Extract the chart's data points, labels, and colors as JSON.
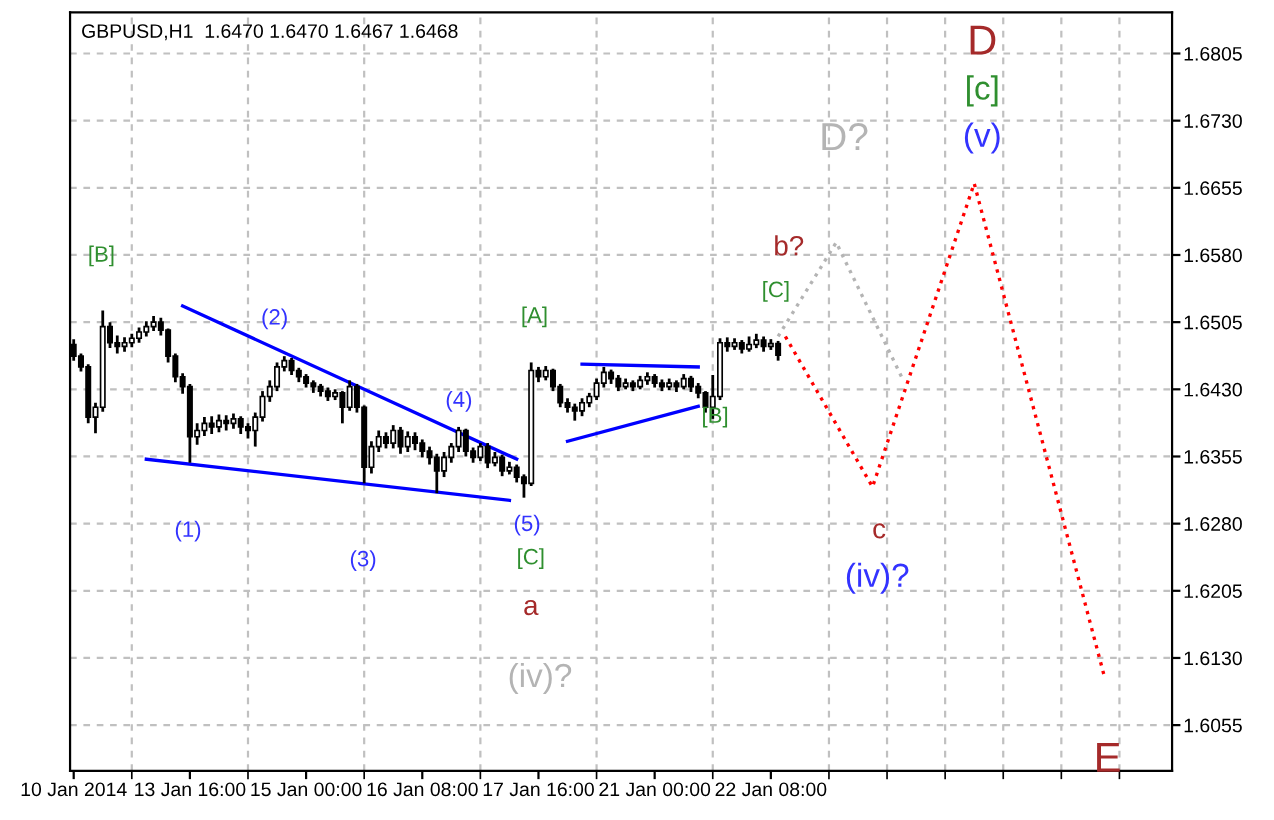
{
  "chart_data": {
    "type": "candlestick",
    "title": "GBPUSD,H1  1.6470 1.6470 1.6467 1.6468",
    "color": "#000000",
    "categories": [
      "10 Jan 2014",
      null,
      null,
      null,
      null,
      null,
      null,
      null,
      null,
      null,
      null,
      null,
      null,
      null,
      null,
      null,
      "13 Jan 16:00",
      null,
      null,
      null,
      null,
      null,
      null,
      null,
      null,
      null,
      null,
      null,
      null,
      null,
      null,
      null,
      "15 Jan 00:00",
      null,
      null,
      null,
      null,
      null,
      null,
      null,
      null,
      null,
      null,
      null,
      null,
      null,
      null,
      null,
      "16 Jan 08:00",
      null,
      null,
      null,
      null,
      null,
      null,
      null,
      null,
      null,
      null,
      null,
      null,
      null,
      null,
      null,
      "17 Jan 16:00",
      null,
      null,
      null,
      null,
      null,
      null,
      null,
      null,
      null,
      null,
      null,
      null,
      null,
      null,
      null,
      "21 Jan 00:00",
      null,
      null,
      null,
      null,
      null,
      null,
      null,
      null,
      null,
      null,
      null,
      null,
      null,
      null,
      null,
      "22 Jan 08:00",
      null,
      null,
      null,
      null,
      null,
      null,
      null,
      null,
      null,
      null,
      null,
      null,
      null,
      null,
      null,
      null,
      null,
      null,
      null,
      null,
      null,
      null,
      null,
      null,
      null,
      null,
      null,
      null,
      null,
      null,
      null,
      null,
      null,
      null,
      null,
      null,
      null,
      null,
      null,
      null,
      null,
      null,
      null,
      null,
      null,
      null,
      null,
      null,
      null,
      null,
      null,
      null,
      null,
      null,
      null
    ],
    "ohlc": [
      [
        1.648,
        1.6486,
        1.6462,
        1.6467
      ],
      [
        1.6467,
        1.647,
        1.645,
        1.6455
      ],
      [
        1.6455,
        1.6458,
        1.6392,
        1.6399
      ],
      [
        1.6399,
        1.6415,
        1.6381,
        1.641
      ],
      [
        1.641,
        1.6518,
        1.6405,
        1.65
      ],
      [
        1.65,
        1.6505,
        1.6476,
        1.6482
      ],
      [
        1.6482,
        1.649,
        1.647,
        1.6478
      ],
      [
        1.6478,
        1.6488,
        1.6472,
        1.6482
      ],
      [
        1.6482,
        1.6492,
        1.6477,
        1.6487
      ],
      [
        1.6487,
        1.6499,
        1.6482,
        1.6494
      ],
      [
        1.6494,
        1.6506,
        1.6489,
        1.65
      ],
      [
        1.65,
        1.6512,
        1.6495,
        1.6505
      ],
      [
        1.6505,
        1.651,
        1.649,
        1.6496
      ],
      [
        1.6496,
        1.6498,
        1.646,
        1.6467
      ],
      [
        1.6467,
        1.647,
        1.6438,
        1.6444
      ],
      [
        1.6444,
        1.6448,
        1.6425,
        1.6433
      ],
      [
        1.6433,
        1.6436,
        1.6348,
        1.6377
      ],
      [
        1.6377,
        1.6392,
        1.6368,
        1.6384
      ],
      [
        1.6384,
        1.6399,
        1.6378,
        1.6392
      ],
      [
        1.6392,
        1.64,
        1.638,
        1.6388
      ],
      [
        1.6388,
        1.6402,
        1.6382,
        1.6395
      ],
      [
        1.6395,
        1.6401,
        1.6384,
        1.6392
      ],
      [
        1.6392,
        1.6403,
        1.6386,
        1.6397
      ],
      [
        1.6397,
        1.64,
        1.638,
        1.6388
      ],
      [
        1.6388,
        1.6392,
        1.6375,
        1.6384
      ],
      [
        1.6384,
        1.6404,
        1.6366,
        1.6399
      ],
      [
        1.6399,
        1.6428,
        1.6394,
        1.6422
      ],
      [
        1.6422,
        1.644,
        1.6416,
        1.6433
      ],
      [
        1.6433,
        1.646,
        1.6428,
        1.6455
      ],
      [
        1.6455,
        1.6467,
        1.645,
        1.6462
      ],
      [
        1.6462,
        1.6465,
        1.6446,
        1.6451
      ],
      [
        1.6451,
        1.6454,
        1.6438,
        1.6444
      ],
      [
        1.6444,
        1.6447,
        1.6432,
        1.6437
      ],
      [
        1.6437,
        1.644,
        1.6426,
        1.6433
      ],
      [
        1.6433,
        1.6436,
        1.6422,
        1.6428
      ],
      [
        1.6428,
        1.6432,
        1.6417,
        1.6422
      ],
      [
        1.6422,
        1.643,
        1.6418,
        1.6426
      ],
      [
        1.6426,
        1.6428,
        1.6392,
        1.641
      ],
      [
        1.641,
        1.644,
        1.6406,
        1.6433
      ],
      [
        1.6433,
        1.6436,
        1.6404,
        1.641
      ],
      [
        1.641,
        1.6412,
        1.6325,
        1.6343
      ],
      [
        1.6343,
        1.6372,
        1.6336,
        1.6366
      ],
      [
        1.6366,
        1.6384,
        1.636,
        1.6377
      ],
      [
        1.6377,
        1.6382,
        1.6364,
        1.637
      ],
      [
        1.637,
        1.639,
        1.6364,
        1.6384
      ],
      [
        1.6384,
        1.6388,
        1.6358,
        1.6366
      ],
      [
        1.6366,
        1.6383,
        1.636,
        1.6377
      ],
      [
        1.6377,
        1.6382,
        1.6362,
        1.637
      ],
      [
        1.637,
        1.6374,
        1.6354,
        1.6361
      ],
      [
        1.6361,
        1.6366,
        1.6346,
        1.6354
      ],
      [
        1.6354,
        1.6358,
        1.6314,
        1.6339
      ],
      [
        1.6339,
        1.636,
        1.6332,
        1.6354
      ],
      [
        1.6354,
        1.637,
        1.6348,
        1.6366
      ],
      [
        1.6366,
        1.6388,
        1.636,
        1.6384
      ],
      [
        1.6384,
        1.6386,
        1.6355,
        1.6361
      ],
      [
        1.6361,
        1.6365,
        1.6348,
        1.6354
      ],
      [
        1.6354,
        1.637,
        1.635,
        1.6366
      ],
      [
        1.6366,
        1.637,
        1.6342,
        1.6348
      ],
      [
        1.6348,
        1.636,
        1.6344,
        1.6354
      ],
      [
        1.6354,
        1.6357,
        1.6333,
        1.6339
      ],
      [
        1.6339,
        1.6349,
        1.6335,
        1.6343
      ],
      [
        1.6343,
        1.6346,
        1.6326,
        1.6332
      ],
      [
        1.6332,
        1.6335,
        1.6309,
        1.6325
      ],
      [
        1.6325,
        1.646,
        1.6322,
        1.6451
      ],
      [
        1.6451,
        1.6455,
        1.6438,
        1.6444
      ],
      [
        1.6444,
        1.6456,
        1.644,
        1.6451
      ],
      [
        1.6451,
        1.6453,
        1.6428,
        1.6433
      ],
      [
        1.6433,
        1.6436,
        1.641,
        1.6415
      ],
      [
        1.6415,
        1.642,
        1.6404,
        1.641
      ],
      [
        1.641,
        1.6414,
        1.6395,
        1.6406
      ],
      [
        1.6406,
        1.642,
        1.64,
        1.6415
      ],
      [
        1.6415,
        1.6426,
        1.641,
        1.6422
      ],
      [
        1.6422,
        1.6442,
        1.6418,
        1.6437
      ],
      [
        1.6437,
        1.6455,
        1.6432,
        1.6449
      ],
      [
        1.6449,
        1.6452,
        1.6436,
        1.6442
      ],
      [
        1.6442,
        1.6446,
        1.6428,
        1.6433
      ],
      [
        1.6433,
        1.6442,
        1.643,
        1.6437
      ],
      [
        1.6437,
        1.644,
        1.6428,
        1.6433
      ],
      [
        1.6433,
        1.6445,
        1.643,
        1.644
      ],
      [
        1.644,
        1.6449,
        1.6435,
        1.6444
      ],
      [
        1.6444,
        1.6447,
        1.6432,
        1.6437
      ],
      [
        1.6437,
        1.6441,
        1.6428,
        1.6433
      ],
      [
        1.6433,
        1.6442,
        1.6429,
        1.6437
      ],
      [
        1.6437,
        1.644,
        1.6427,
        1.6433
      ],
      [
        1.6433,
        1.6447,
        1.643,
        1.6442
      ],
      [
        1.6442,
        1.6445,
        1.6427,
        1.6433
      ],
      [
        1.6433,
        1.6437,
        1.642,
        1.6426
      ],
      [
        1.6426,
        1.6428,
        1.6404,
        1.641
      ],
      [
        1.641,
        1.6446,
        1.6397,
        1.6422
      ],
      [
        1.6422,
        1.6487,
        1.6418,
        1.6482
      ],
      [
        1.6482,
        1.6488,
        1.6472,
        1.6478
      ],
      [
        1.6478,
        1.6487,
        1.6474,
        1.6482
      ],
      [
        1.6482,
        1.6485,
        1.647,
        1.6475
      ],
      [
        1.6475,
        1.6489,
        1.6472,
        1.648
      ],
      [
        1.648,
        1.6492,
        1.6476,
        1.6485
      ],
      [
        1.6485,
        1.6489,
        1.6472,
        1.6478
      ],
      [
        1.6478,
        1.6486,
        1.6474,
        1.6481
      ],
      [
        1.6481,
        1.6484,
        1.6462,
        1.6468
      ],
      null,
      null,
      null,
      null,
      null,
      null,
      null,
      null,
      null,
      null,
      null,
      null,
      null,
      null,
      null,
      null,
      null,
      null,
      null,
      null,
      null,
      null,
      null,
      null,
      null,
      null,
      null,
      null,
      null,
      null,
      null,
      null,
      null,
      null,
      null,
      null,
      null,
      null,
      null,
      null,
      null,
      null,
      null,
      null,
      null,
      null,
      null,
      null,
      null,
      null,
      null,
      null,
      null,
      null
    ],
    "series": [
      {
        "type": "line",
        "color": "#0000ff",
        "line_style": "solid",
        "values": [
          null,
          null,
          null,
          null,
          null,
          null,
          null,
          null,
          null,
          null,
          null,
          null,
          null,
          null,
          null,
          1.6523,
          null,
          null,
          null,
          null,
          null,
          null,
          null,
          null,
          null,
          null,
          null,
          null,
          null,
          null,
          null,
          null,
          null,
          null,
          null,
          null,
          null,
          null,
          null,
          null,
          null,
          null,
          null,
          null,
          null,
          null,
          null,
          null,
          null,
          null,
          null,
          null,
          null,
          null,
          null,
          null,
          null,
          null,
          null,
          null,
          null,
          1.6352,
          null,
          null,
          null,
          null,
          null,
          null,
          null,
          null,
          null,
          null,
          null,
          null,
          null,
          null,
          null,
          null,
          null,
          null,
          null,
          null,
          null,
          null,
          null,
          null,
          null,
          null,
          null,
          null,
          null,
          null,
          null,
          null,
          null,
          null,
          null,
          null,
          null,
          null,
          null,
          null,
          null,
          null,
          null,
          null,
          null,
          null,
          null,
          null,
          null,
          null,
          null,
          null,
          null,
          null,
          null,
          null,
          null,
          null,
          null,
          null,
          null,
          null,
          null,
          null,
          null,
          null,
          null,
          null,
          null,
          null,
          null,
          null,
          null,
          null,
          null,
          null,
          null,
          null,
          null,
          null,
          null,
          null,
          null,
          null,
          null,
          null,
          null,
          null,
          null,
          null
        ]
      },
      {
        "type": "line",
        "color": "#0000ff",
        "line_style": "solid",
        "values": [
          null,
          null,
          null,
          null,
          null,
          null,
          null,
          null,
          null,
          null,
          1.6352,
          null,
          null,
          null,
          null,
          null,
          null,
          null,
          null,
          null,
          null,
          null,
          null,
          null,
          null,
          null,
          null,
          null,
          null,
          null,
          null,
          null,
          null,
          null,
          null,
          null,
          null,
          null,
          null,
          null,
          null,
          null,
          null,
          null,
          null,
          null,
          null,
          null,
          null,
          null,
          null,
          null,
          null,
          null,
          null,
          null,
          null,
          null,
          null,
          null,
          1.6306,
          null,
          null,
          null,
          null,
          null,
          null,
          null,
          null,
          null,
          null,
          null,
          null,
          null,
          null,
          null,
          null,
          null,
          null,
          null,
          null,
          null,
          null,
          null,
          null,
          null,
          null,
          null,
          null,
          null,
          null,
          null,
          null,
          null,
          null,
          null,
          null,
          null,
          null,
          null,
          null,
          null,
          null,
          null,
          null,
          null,
          null,
          null,
          null,
          null,
          null,
          null,
          null,
          null,
          null,
          null,
          null,
          null,
          null,
          null,
          null,
          null,
          null,
          null,
          null,
          null,
          null,
          null,
          null,
          null,
          null,
          null,
          null,
          null,
          null,
          null,
          null,
          null,
          null,
          null,
          null,
          null,
          null,
          null,
          null,
          null,
          null,
          null,
          null,
          null,
          null,
          null
        ]
      },
      {
        "type": "line",
        "color": "#0000ff",
        "line_style": "solid",
        "values": [
          null,
          null,
          null,
          null,
          null,
          null,
          null,
          null,
          null,
          null,
          null,
          null,
          null,
          null,
          null,
          null,
          null,
          null,
          null,
          null,
          null,
          null,
          null,
          null,
          null,
          null,
          null,
          null,
          null,
          null,
          null,
          null,
          null,
          null,
          null,
          null,
          null,
          null,
          null,
          null,
          null,
          null,
          null,
          null,
          null,
          null,
          null,
          null,
          null,
          null,
          null,
          null,
          null,
          null,
          null,
          null,
          null,
          null,
          null,
          null,
          null,
          null,
          null,
          null,
          null,
          null,
          null,
          null,
          null,
          null,
          1.6458,
          null,
          null,
          null,
          null,
          null,
          null,
          null,
          null,
          null,
          null,
          null,
          null,
          null,
          null,
          null,
          1.6455,
          null,
          null,
          null,
          null,
          null,
          null,
          null,
          null,
          null,
          null,
          null,
          null,
          null,
          null,
          null,
          null,
          null,
          null,
          null,
          null,
          null,
          null,
          null,
          null,
          null,
          null,
          null,
          null,
          null,
          null,
          null,
          null,
          null,
          null,
          null,
          null,
          null,
          null,
          null,
          null,
          null,
          null,
          null,
          null,
          null,
          null,
          null,
          null,
          null,
          null,
          null,
          null,
          null,
          null,
          null,
          null,
          null,
          null,
          null,
          null,
          null,
          null,
          null,
          null,
          null
        ]
      },
      {
        "type": "line",
        "color": "#0000ff",
        "line_style": "solid",
        "values": [
          null,
          null,
          null,
          null,
          null,
          null,
          null,
          null,
          null,
          null,
          null,
          null,
          null,
          null,
          null,
          null,
          null,
          null,
          null,
          null,
          null,
          null,
          null,
          null,
          null,
          null,
          null,
          null,
          null,
          null,
          null,
          null,
          null,
          null,
          null,
          null,
          null,
          null,
          null,
          null,
          null,
          null,
          null,
          null,
          null,
          null,
          null,
          null,
          null,
          null,
          null,
          null,
          null,
          null,
          null,
          null,
          null,
          null,
          null,
          null,
          null,
          null,
          null,
          null,
          null,
          null,
          null,
          null,
          1.6372,
          null,
          null,
          null,
          null,
          null,
          null,
          null,
          null,
          null,
          null,
          null,
          null,
          null,
          null,
          null,
          null,
          null,
          1.6411,
          null,
          null,
          null,
          null,
          null,
          null,
          null,
          null,
          null,
          null,
          null,
          null,
          null,
          null,
          null,
          null,
          null,
          null,
          null,
          null,
          null,
          null,
          null,
          null,
          null,
          null,
          null,
          null,
          null,
          null,
          null,
          null,
          null,
          null,
          null,
          null,
          null,
          null,
          null,
          null,
          null,
          null,
          null,
          null,
          null,
          null,
          null,
          null,
          null,
          null,
          null,
          null,
          null,
          null,
          null,
          null,
          null,
          null,
          null,
          null,
          null,
          null,
          null,
          null,
          null
        ]
      },
      {
        "type": "line",
        "color": "#b4b4b4",
        "line_style": "dotted",
        "values": [
          null,
          null,
          null,
          null,
          null,
          null,
          null,
          null,
          null,
          null,
          null,
          null,
          null,
          null,
          null,
          null,
          null,
          null,
          null,
          null,
          null,
          null,
          null,
          null,
          null,
          null,
          null,
          null,
          null,
          null,
          null,
          null,
          null,
          null,
          null,
          null,
          null,
          null,
          null,
          null,
          null,
          null,
          null,
          null,
          null,
          null,
          null,
          null,
          null,
          null,
          null,
          null,
          null,
          null,
          null,
          null,
          null,
          null,
          null,
          null,
          null,
          null,
          null,
          null,
          null,
          null,
          null,
          null,
          null,
          null,
          null,
          null,
          null,
          null,
          null,
          null,
          null,
          null,
          null,
          null,
          null,
          null,
          null,
          null,
          null,
          null,
          null,
          null,
          null,
          null,
          null,
          null,
          null,
          null,
          null,
          null,
          null,
          1.6489,
          null,
          null,
          null,
          null,
          null,
          null,
          null,
          1.6594,
          null,
          null,
          null,
          null,
          null,
          null,
          null,
          null,
          1.6444,
          null,
          null,
          null,
          null,
          null,
          null,
          null,
          null,
          null,
          null,
          null,
          null,
          null,
          null,
          null,
          null,
          null,
          null,
          null,
          null,
          null,
          null,
          null,
          null,
          null,
          null,
          null,
          null,
          null,
          null,
          null,
          null,
          null,
          null,
          null,
          null,
          null
        ]
      },
      {
        "type": "line",
        "color": "#ff0000",
        "line_style": "dotted",
        "values": [
          null,
          null,
          null,
          null,
          null,
          null,
          null,
          null,
          null,
          null,
          null,
          null,
          null,
          null,
          null,
          null,
          null,
          null,
          null,
          null,
          null,
          null,
          null,
          null,
          null,
          null,
          null,
          null,
          null,
          null,
          null,
          null,
          null,
          null,
          null,
          null,
          null,
          null,
          null,
          null,
          null,
          null,
          null,
          null,
          null,
          null,
          null,
          null,
          null,
          null,
          null,
          null,
          null,
          null,
          null,
          null,
          null,
          null,
          null,
          null,
          null,
          null,
          null,
          null,
          null,
          null,
          null,
          null,
          null,
          null,
          null,
          null,
          null,
          null,
          null,
          null,
          null,
          null,
          null,
          null,
          null,
          null,
          null,
          null,
          null,
          null,
          null,
          null,
          null,
          null,
          null,
          null,
          null,
          null,
          null,
          null,
          null,
          null,
          1.6489,
          null,
          null,
          null,
          null,
          null,
          null,
          null,
          null,
          null,
          null,
          null,
          1.6321,
          null,
          null,
          null,
          null,
          null,
          null,
          null,
          null,
          null,
          null,
          null,
          null,
          null,
          1.666,
          null,
          null,
          null,
          null,
          null,
          null,
          null,
          null,
          null,
          null,
          null,
          null,
          null,
          null,
          null,
          null,
          null,
          1.6107,
          null,
          null,
          null,
          null,
          null,
          null,
          null,
          null,
          null
        ]
      }
    ],
    "annotations": [
      "[B]",
      "(1)",
      "(2)",
      "(3)",
      "(4)",
      "(5)",
      "[C]",
      "a",
      "(iv)?",
      "[A]",
      "[B]",
      "[C]",
      "b?",
      "D?",
      "c",
      "(iv)?",
      "D",
      "[c]",
      "(v)",
      "E"
    ],
    "ylim": [
      1.6004,
      1.6851
    ],
    "yticks": [
      {
        "value": 1.6055,
        "label": "1.6055"
      },
      {
        "value": 1.613,
        "label": "1.6130"
      },
      {
        "value": 1.6205,
        "label": "1.6205"
      },
      {
        "value": 1.628,
        "label": "1.6280"
      },
      {
        "value": 1.6355,
        "label": "1.6355"
      },
      {
        "value": 1.643,
        "label": "1.6430"
      },
      {
        "value": 1.6505,
        "label": "1.6505"
      },
      {
        "value": 1.658,
        "label": "1.6580"
      },
      {
        "value": 1.6655,
        "label": "1.6655"
      },
      {
        "value": 1.673,
        "label": "1.6730"
      },
      {
        "value": 1.6805,
        "label": "1.6805"
      }
    ],
    "grid": true
  }
}
